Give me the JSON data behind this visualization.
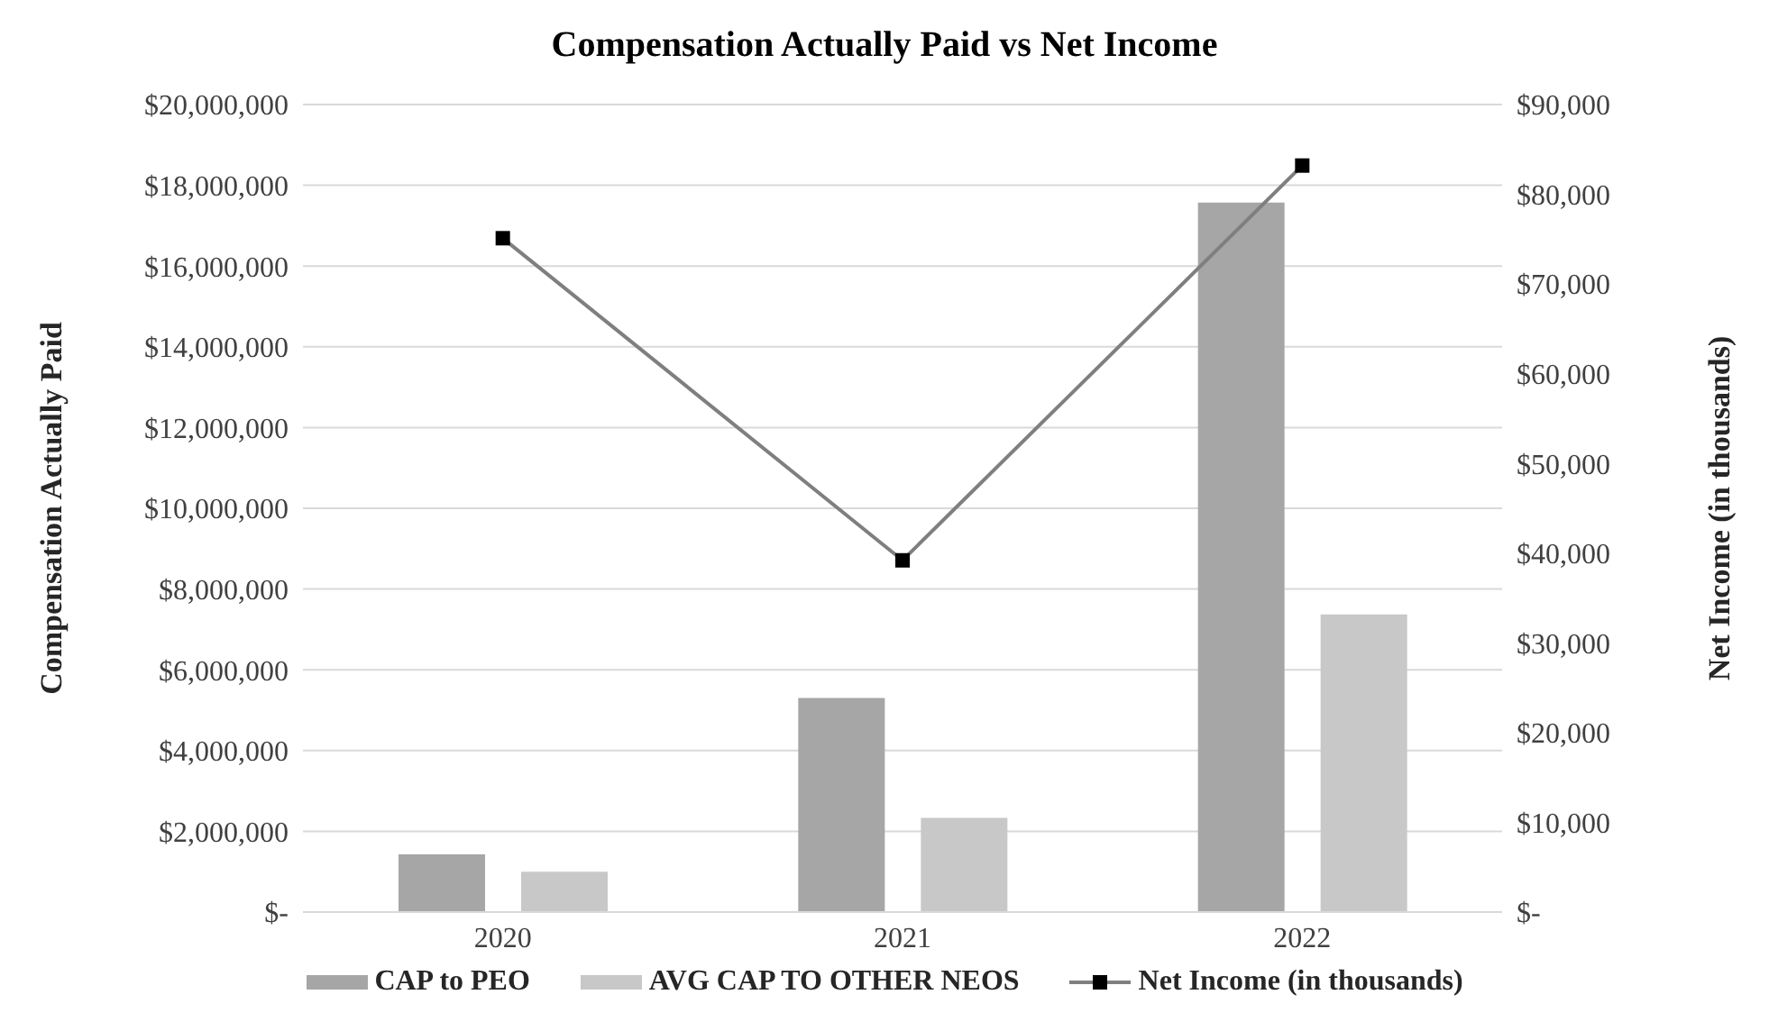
{
  "chart_data": {
    "type": "bar",
    "title": "Compensation Actually Paid vs Net Income",
    "ylabel": "Compensation  Actually Paid",
    "y2label": "Net Income  (in thousands)",
    "categories": [
      "2020",
      "2021",
      "2022"
    ],
    "series": [
      {
        "name": "CAP to PEO",
        "color": "#a6a6a6",
        "values": [
          1430000,
          5300000,
          17570000
        ]
      },
      {
        "name": "AVG CAP TO OTHER NEOS",
        "color": "#c8c8c8",
        "values": [
          1000000,
          2330000,
          7370000
        ]
      },
      {
        "name": "Net Income (in thousands)",
        "type": "line",
        "axis": "y2",
        "color": "#7f7f7f",
        "marker": "square",
        "values": [
          75100,
          39200,
          83200
        ]
      }
    ],
    "ylim": [
      0,
      20000000
    ],
    "yticks": [
      {
        "value": 0,
        "label": "$-"
      },
      {
        "value": 2000000,
        "label": "$2,000,000"
      },
      {
        "value": 4000000,
        "label": "$4,000,000"
      },
      {
        "value": 6000000,
        "label": "$6,000,000"
      },
      {
        "value": 8000000,
        "label": "$8,000,000"
      },
      {
        "value": 10000000,
        "label": "$10,000,000"
      },
      {
        "value": 12000000,
        "label": "$12,000,000"
      },
      {
        "value": 14000000,
        "label": "$14,000,000"
      },
      {
        "value": 16000000,
        "label": "$16,000,000"
      },
      {
        "value": 18000000,
        "label": "$18,000,000"
      },
      {
        "value": 20000000,
        "label": "$20,000,000"
      }
    ],
    "y2lim": [
      0,
      90000
    ],
    "y2ticks": [
      {
        "value": 0,
        "label": "$-"
      },
      {
        "value": 10000,
        "label": "$10,000"
      },
      {
        "value": 20000,
        "label": "$20,000"
      },
      {
        "value": 30000,
        "label": "$30,000"
      },
      {
        "value": 40000,
        "label": "$40,000"
      },
      {
        "value": 50000,
        "label": "$50,000"
      },
      {
        "value": 60000,
        "label": "$60,000"
      },
      {
        "value": 70000,
        "label": "$70,000"
      },
      {
        "value": 80000,
        "label": "$80,000"
      },
      {
        "value": 90000,
        "label": "$90,000"
      }
    ],
    "grid": "y",
    "legend": "bottom"
  }
}
